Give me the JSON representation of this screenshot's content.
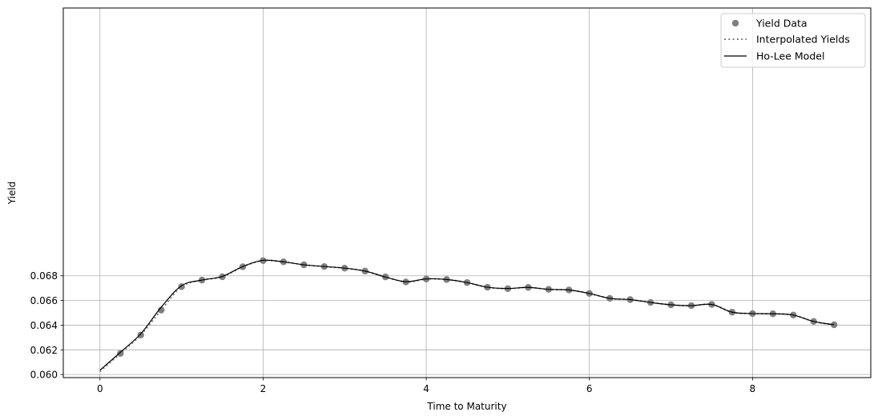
{
  "chart_data": {
    "type": "line",
    "xlabel": "Time to Maturity",
    "ylabel": "Yield",
    "xlim": [
      -0.45,
      9.45
    ],
    "ylim": [
      0.05975,
      0.0897
    ],
    "x_ticks": [
      0,
      2,
      4,
      6,
      8
    ],
    "x_tick_labels": [
      "0",
      "2",
      "4",
      "6",
      "8"
    ],
    "y_ticks": [
      0.06,
      0.062,
      0.064,
      0.066,
      0.068
    ],
    "y_tick_labels": [
      "0.060",
      "0.062",
      "0.064",
      "0.066",
      "0.068"
    ],
    "grid": true,
    "legend_position": "top-right",
    "colors": {
      "yield_data": "#808080",
      "interpolated": "#808080",
      "ho_lee": "#000000",
      "grid": "#b0b0b0"
    },
    "series": [
      {
        "name": "Yield Data",
        "kind": "scatter",
        "x": [
          0.25,
          0.5,
          0.75,
          1.0,
          1.25,
          1.5,
          1.75,
          2.0,
          2.25,
          2.5,
          2.75,
          3.0,
          3.25,
          3.5,
          3.75,
          4.0,
          4.25,
          4.5,
          4.75,
          5.0,
          5.25,
          5.5,
          5.75,
          6.0,
          6.25,
          6.5,
          6.75,
          7.0,
          7.25,
          7.5,
          7.75,
          8.0,
          8.25,
          8.5,
          8.75,
          9.0
        ],
        "y": [
          0.06171,
          0.0632,
          0.06522,
          0.06712,
          0.06765,
          0.06792,
          0.06873,
          0.06923,
          0.06913,
          0.06889,
          0.06875,
          0.06862,
          0.06838,
          0.06791,
          0.0675,
          0.06774,
          0.0677,
          0.06745,
          0.06707,
          0.06696,
          0.06706,
          0.0669,
          0.06685,
          0.06657,
          0.06617,
          0.06607,
          0.06584,
          0.06565,
          0.06558,
          0.06568,
          0.06505,
          0.06494,
          0.06492,
          0.06482,
          0.0643,
          0.06403
        ]
      },
      {
        "name": "Interpolated Yields",
        "kind": "dotted-line",
        "x": [
          0.0,
          0.25,
          0.5,
          0.75,
          1.0,
          1.25,
          1.5,
          1.75,
          2.0,
          2.25,
          2.5,
          2.75,
          3.0,
          3.25,
          3.5,
          3.75,
          4.0,
          4.25,
          4.5,
          4.75,
          5.0,
          5.25,
          5.5,
          5.75,
          6.0,
          6.25,
          6.5,
          6.75,
          7.0,
          7.25,
          7.5,
          7.75,
          8.0,
          8.25,
          8.5,
          8.75,
          9.0
        ],
        "y": [
          0.06024,
          0.06171,
          0.0632,
          0.06522,
          0.06712,
          0.06765,
          0.06792,
          0.06873,
          0.06923,
          0.06913,
          0.06889,
          0.06875,
          0.06862,
          0.06838,
          0.06791,
          0.0675,
          0.06774,
          0.0677,
          0.06745,
          0.06707,
          0.06696,
          0.06706,
          0.0669,
          0.06685,
          0.06657,
          0.06617,
          0.06607,
          0.06584,
          0.06565,
          0.06558,
          0.06568,
          0.06505,
          0.06494,
          0.06492,
          0.06482,
          0.0643,
          0.06403
        ]
      },
      {
        "name": "Ho-Lee Model",
        "kind": "line",
        "x": [
          0.0,
          0.25,
          0.5,
          0.75,
          1.0,
          1.25,
          1.5,
          1.75,
          2.0,
          2.25,
          2.5,
          2.75,
          3.0,
          3.25,
          3.5,
          3.75,
          4.0,
          4.25,
          4.5,
          4.75,
          5.0,
          5.25,
          5.5,
          5.75,
          6.0,
          6.25,
          6.5,
          6.75,
          7.0,
          7.25,
          7.5,
          7.75,
          8.0,
          8.25,
          8.5,
          8.75,
          9.0
        ],
        "y": [
          0.06035,
          0.0618,
          0.0633,
          0.06545,
          0.0672,
          0.06765,
          0.06795,
          0.06875,
          0.06925,
          0.06913,
          0.06889,
          0.06875,
          0.06862,
          0.06838,
          0.0679,
          0.06752,
          0.06775,
          0.0677,
          0.06745,
          0.06707,
          0.06697,
          0.06706,
          0.0669,
          0.06685,
          0.06657,
          0.06617,
          0.06607,
          0.06584,
          0.06565,
          0.06558,
          0.06568,
          0.06505,
          0.06494,
          0.06492,
          0.06482,
          0.0643,
          0.06403
        ]
      }
    ]
  }
}
